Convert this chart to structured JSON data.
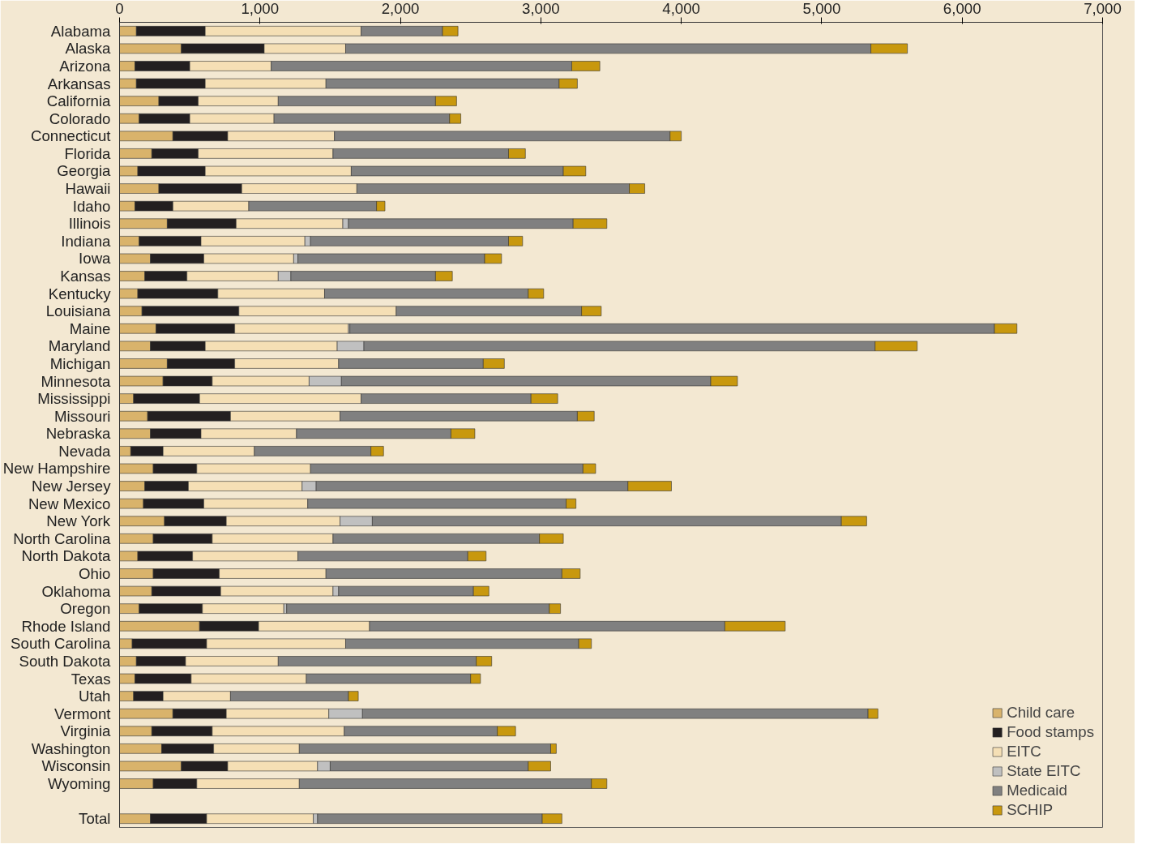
{
  "chart_data": {
    "type": "bar",
    "orientation": "horizontal",
    "stacked": true,
    "categories": [
      "Alabama",
      "Alaska",
      "Arizona",
      "Arkansas",
      "California",
      "Colorado",
      "Connecticut",
      "Florida",
      "Georgia",
      "Hawaii",
      "Idaho",
      "Illinois",
      "Indiana",
      "Iowa",
      "Kansas",
      "Kentucky",
      "Louisiana",
      "Maine",
      "Maryland",
      "Michigan",
      "Minnesota",
      "Mississippi",
      "Missouri",
      "Nebraska",
      "Nevada",
      "New Hampshire",
      "New Jersey",
      "New Mexico",
      "New York",
      "North Carolina",
      "North Dakota",
      "Ohio",
      "Oklahoma",
      "Oregon",
      "Rhode Island",
      "South Carolina",
      "South Dakota",
      "Texas",
      "Utah",
      "Vermont",
      "Virginia",
      "Washington",
      "Wisconsin",
      "Wyoming",
      null,
      "Total"
    ],
    "series": [
      {
        "name": "Child care",
        "color": "#d9b36b",
        "values": [
          120,
          440,
          110,
          120,
          280,
          140,
          380,
          230,
          130,
          280,
          110,
          340,
          140,
          220,
          180,
          130,
          160,
          260,
          220,
          340,
          310,
          100,
          200,
          220,
          80,
          240,
          180,
          170,
          320,
          240,
          130,
          240,
          230,
          140,
          570,
          90,
          120,
          110,
          100,
          380,
          230,
          300,
          440,
          240,
          null,
          220
        ]
      },
      {
        "name": "Food stamps",
        "color": "#231f20",
        "values": [
          490,
          590,
          390,
          490,
          280,
          360,
          390,
          330,
          480,
          590,
          270,
          490,
          440,
          380,
          300,
          570,
          690,
          560,
          390,
          480,
          350,
          470,
          590,
          360,
          230,
          310,
          310,
          430,
          440,
          420,
          390,
          470,
          490,
          450,
          420,
          530,
          350,
          400,
          210,
          380,
          430,
          370,
          330,
          310,
          null,
          400
        ]
      },
      {
        "name": "EITC",
        "color": "#f5dfb5",
        "values": [
          1110,
          580,
          580,
          860,
          570,
          600,
          760,
          960,
          1040,
          820,
          540,
          760,
          740,
          640,
          650,
          760,
          1120,
          810,
          940,
          740,
          690,
          1150,
          780,
          680,
          650,
          810,
          810,
          740,
          810,
          860,
          750,
          760,
          800,
          580,
          790,
          990,
          660,
          820,
          480,
          730,
          940,
          610,
          640,
          730,
          null,
          760
        ]
      },
      {
        "name": "State EITC",
        "color": "#c0c0c0",
        "values": [
          0,
          0,
          0,
          0,
          0,
          0,
          0,
          0,
          0,
          0,
          0,
          40,
          40,
          30,
          90,
          0,
          0,
          10,
          190,
          0,
          230,
          0,
          0,
          0,
          0,
          0,
          100,
          0,
          230,
          0,
          0,
          0,
          40,
          20,
          0,
          0,
          0,
          0,
          0,
          240,
          0,
          0,
          90,
          0,
          null,
          30
        ]
      },
      {
        "name": "Medicaid",
        "color": "#808080",
        "values": [
          580,
          3740,
          2140,
          1660,
          1120,
          1250,
          2390,
          1250,
          1510,
          1940,
          910,
          1600,
          1410,
          1330,
          1030,
          1450,
          1320,
          4590,
          3640,
          1030,
          2630,
          1210,
          1690,
          1100,
          830,
          1940,
          2220,
          1840,
          3340,
          1470,
          1210,
          1680,
          960,
          1870,
          2530,
          1660,
          1410,
          1170,
          840,
          3600,
          1090,
          1790,
          1410,
          2080,
          null,
          1600
        ]
      },
      {
        "name": "SCHIP",
        "color": "#c8980e",
        "values": [
          110,
          260,
          200,
          130,
          150,
          80,
          80,
          120,
          160,
          110,
          60,
          240,
          100,
          120,
          120,
          110,
          140,
          160,
          300,
          150,
          190,
          190,
          120,
          170,
          90,
          90,
          310,
          70,
          180,
          170,
          130,
          130,
          110,
          80,
          430,
          90,
          110,
          70,
          70,
          70,
          130,
          40,
          160,
          110,
          null,
          140
        ]
      }
    ],
    "xlim": [
      0,
      7000
    ],
    "xticks": [
      0,
      {
        "value": 1000,
        "label": "1,000"
      },
      {
        "value": 2000,
        "label": "2,000"
      },
      {
        "value": 3000,
        "label": "3,000"
      },
      {
        "value": 4000,
        "label": "4,000"
      },
      {
        "value": 5000,
        "label": "5,000"
      },
      {
        "value": 6000,
        "label": "6,000"
      },
      {
        "value": 7000,
        "label": "7,000"
      }
    ],
    "grid": false,
    "legend": "bottom right"
  }
}
